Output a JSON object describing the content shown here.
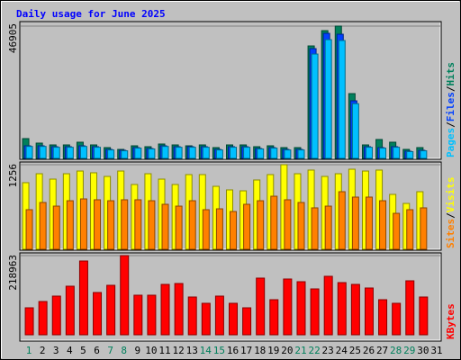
{
  "chart_data": {
    "type": "bar",
    "title": "Daily usage for June 2025",
    "categories": [
      "1",
      "2",
      "3",
      "4",
      "5",
      "6",
      "7",
      "8",
      "9",
      "10",
      "11",
      "12",
      "13",
      "14",
      "15",
      "16",
      "17",
      "18",
      "19",
      "20",
      "21",
      "22",
      "23",
      "24",
      "25",
      "26",
      "27",
      "28",
      "29",
      "30",
      "31"
    ],
    "category_colors": [
      "#00805c",
      "#000000",
      "#000000",
      "#000000",
      "#000000",
      "#000000",
      "#00805c",
      "#00805c",
      "#000000",
      "#000000",
      "#000000",
      "#000000",
      "#000000",
      "#00805c",
      "#00805c",
      "#000000",
      "#000000",
      "#000000",
      "#000000",
      "#000000",
      "#00805c",
      "#00805c",
      "#000000",
      "#000000",
      "#000000",
      "#000000",
      "#000000",
      "#00805c",
      "#00805c",
      "#000000",
      "#000000"
    ],
    "legend_separator": "/",
    "panels": [
      {
        "ylim": [
          0,
          46905
        ],
        "yticks": [
          46905
        ],
        "series": [
          {
            "name": "Pages",
            "color": "#00c0ff",
            "values": [
              4250,
              4250,
              3950,
              3950,
              4250,
              3950,
              3000,
              2700,
              3650,
              3350,
              4250,
              3950,
              3950,
              3950,
              3000,
              3950,
              3950,
              3350,
              3650,
              3000,
              3000,
              37000,
              42100,
              41800,
              19400,
              3950,
              3650,
              3950,
              2400,
              2700,
              null
            ]
          },
          {
            "name": "Files",
            "color": "#0040ff",
            "values": [
              4466,
              4466,
              4147,
              4147,
              4466,
              4147,
              3190,
              2871,
              3828,
              3509,
              4466,
              4147,
              4147,
              4147,
              3190,
              4147,
              4147,
              3509,
              3828,
              3190,
              3190,
              38918,
              44341,
              44022,
              20416,
              4147,
              3828,
              4147,
              2552,
              2871,
              null
            ]
          },
          {
            "name": "Hits",
            "color": "#00805c",
            "values": [
              7018,
              5423,
              4785,
              4785,
              5742,
              4785,
              3828,
              3190,
              4466,
              4147,
              5104,
              4785,
              4466,
              4785,
              3828,
              4785,
              4785,
              4147,
              4466,
              3828,
              3828,
              39875,
              45298,
              46905,
              22968,
              4785,
              6699,
              5742,
              3190,
              3828,
              null
            ]
          }
        ]
      },
      {
        "ylim": [
          0,
          1256
        ],
        "yticks": [
          1256
        ],
        "series": [
          {
            "name": "Sites",
            "color": "#ff8000",
            "values": [
              588,
              695,
              641,
              721,
              748,
              735,
              721,
              735,
              735,
              721,
              668,
              641,
              721,
              588,
              601,
              561,
              668,
              721,
              788,
              735,
              695,
              615,
              641,
              855,
              775,
              775,
              721,
              534,
              588,
              615,
              null
            ]
          },
          {
            "name": "Visits",
            "color": "#ffff00",
            "values": [
              989,
              1122,
              1042,
              1122,
              1162,
              1136,
              1082,
              1162,
              962,
              1122,
              1042,
              962,
              1109,
              1109,
              935,
              882,
              868,
              1029,
              1109,
              1256,
              1122,
              1176,
              1082,
              1122,
              1189,
              1162,
              1176,
              815,
              681,
              855,
              null
            ]
          }
        ]
      },
      {
        "ylim": [
          0,
          218963
        ],
        "yticks": [
          218963
        ],
        "series": [
          {
            "name": "KBytes",
            "color": "#ff0000",
            "values": [
              74640,
              92056,
              106984,
              134352,
              204016,
              116936,
              136840,
              218963,
              109472,
              109472,
              139328,
              141816,
              104496,
              87080,
              106984,
              87080,
              74640,
              156744,
              97032,
              154256,
              146792,
              126888,
              161720,
              144304,
              139328,
              129376,
              97032,
              87080,
              149280,
              104496,
              null
            ]
          }
        ]
      }
    ]
  }
}
